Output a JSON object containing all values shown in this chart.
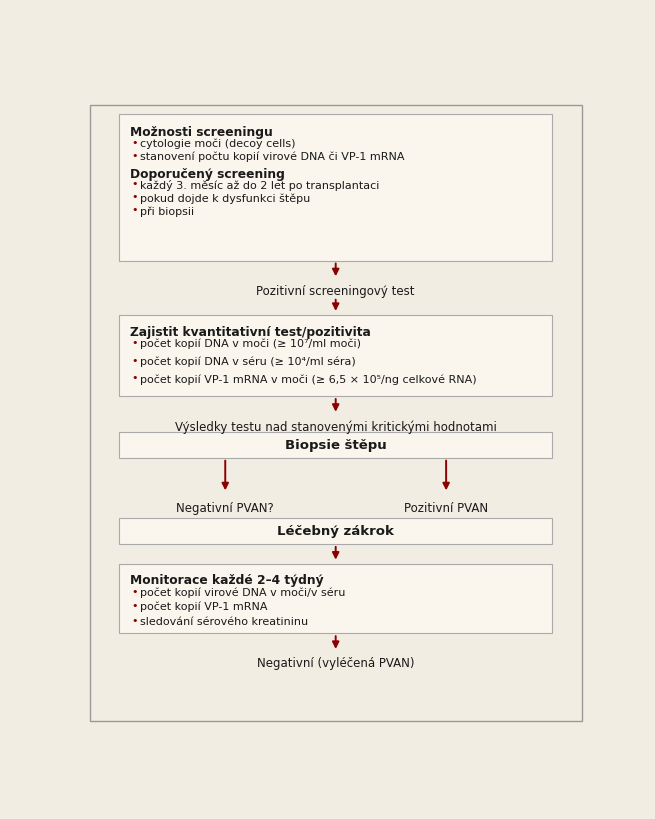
{
  "bg_color": "#f2ede2",
  "border_color": "#999999",
  "box_fill": "#faf6ee",
  "box_edge": "#aaaaaa",
  "arrow_color": "#8b0000",
  "text_color": "#1a1a1a",
  "bullet_color": "#8b0000",
  "bold_color": "#1a1a1a",
  "box1_title1": "Možnosti screeningu",
  "box1_bullets1": [
    "cytologie moči (decoy cells)",
    "stanovení počtu kopií virové DNA či VP-1 mRNA"
  ],
  "box1_title2": "Doporučený screening",
  "box1_bullets2": [
    "každý 3. měsíc až do 2 let po transplantaci",
    "pokud dojde k dysfunkci štěpu",
    "při biopsii"
  ],
  "label1": "Pozitivní screeningový test",
  "box2_title": "Zajistit kvantitativní test/pozitivita",
  "box2_bullets": [
    "počet kopií DNA v moči (≥ 10⁷/ml moči)",
    "počet kopií DNA v séru (≥ 10⁴/ml séra)",
    "počet kopií VP-1 mRNA v moči (≥ 6,5 × 10⁵/ng celkové RNA)"
  ],
  "label2": "Výsledky testu nad stanovenými kritickými hodnotami",
  "box3_title": "Biopsie štěpu",
  "branch_left": "Negativní PVAN?",
  "branch_right": "Pozitivní PVAN",
  "box4_title": "Léčebný zákrok",
  "box5_title": "Monitorace každé 2–4 týdný",
  "box5_bullets": [
    "počet kopií virové DNA v moči/v séru",
    "počet kopií VP-1 mRNA",
    "sledování sérového kreatininu"
  ],
  "label3": "Negativní (vyléčená PVAN)"
}
